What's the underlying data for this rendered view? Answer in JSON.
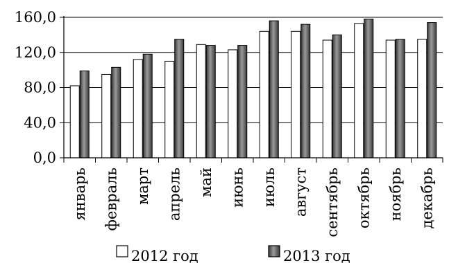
{
  "chart_data": {
    "type": "bar",
    "title": "",
    "xlabel": "",
    "ylabel": "",
    "categories": [
      "январь",
      "февраль",
      "март",
      "апрель",
      "май",
      "июнь",
      "июль",
      "август",
      "сентябрь",
      "октябрь",
      "ноябрь",
      "декабрь"
    ],
    "series": [
      {
        "name": "2012 год",
        "color": "#ffffff",
        "values": [
          82,
          95,
          112,
          110,
          129,
          123,
          144,
          144,
          134,
          153,
          134,
          135
        ]
      },
      {
        "name": "2013 год",
        "color": "#555555",
        "values": [
          99,
          103,
          118,
          135,
          128,
          128,
          156,
          152,
          140,
          158,
          135,
          154
        ]
      }
    ],
    "ylim": [
      0,
      160
    ],
    "yticks": [
      0,
      40,
      80,
      120,
      160
    ],
    "ytick_labels": [
      "0,0",
      "40,0",
      "80,0",
      "120,0",
      "160,0"
    ],
    "grid": true,
    "legend_position": "bottom"
  }
}
